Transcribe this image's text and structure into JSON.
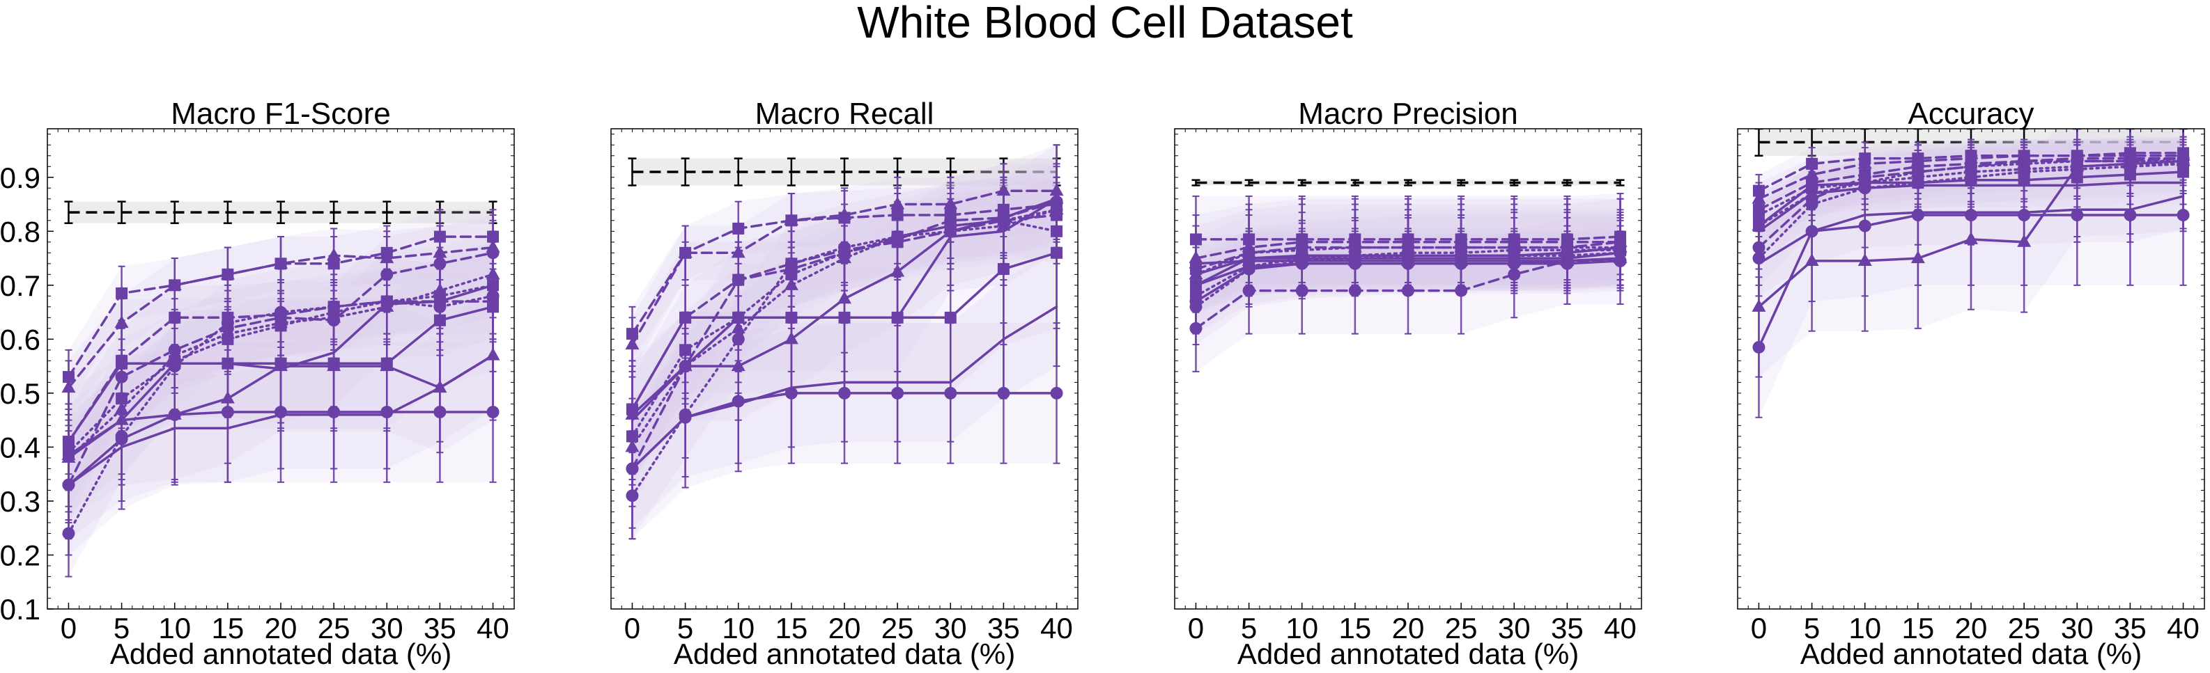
{
  "title": "White Blood Cell Dataset",
  "colors": {
    "series": "#6a3fa6",
    "band": "#d9cdec",
    "reference": "#000000",
    "reference_band": "#ececec"
  },
  "chart_data": [
    {
      "type": "line",
      "title": "Macro F1-Score",
      "xlabel": "Added annotated data (%)",
      "ylabel": "",
      "ylim": [
        0.1,
        0.99
      ],
      "yticks": [
        0.1,
        0.2,
        0.3,
        0.4,
        0.5,
        0.6,
        0.7,
        0.8,
        0.9
      ],
      "x": [
        0,
        5,
        10,
        15,
        20,
        25,
        30,
        35,
        40
      ],
      "reference": {
        "value": 0.835,
        "lo": 0.815,
        "hi": 0.855
      },
      "series": [
        {
          "marker": "square",
          "style": "dashed",
          "values": [
            0.53,
            0.685,
            0.7,
            0.72,
            0.74,
            0.74,
            0.76,
            0.79,
            0.79
          ],
          "err": 0.05
        },
        {
          "marker": "triangle",
          "style": "dashed",
          "values": [
            0.51,
            0.63,
            0.7,
            0.72,
            0.74,
            0.755,
            0.75,
            0.76,
            0.77
          ],
          "err": 0.05
        },
        {
          "marker": "square",
          "style": "dashed",
          "values": [
            0.41,
            0.56,
            0.64,
            0.64,
            0.645,
            0.66,
            0.67,
            0.67,
            0.67
          ],
          "err": 0.06
        },
        {
          "marker": "circle",
          "style": "dashed",
          "values": [
            0.33,
            0.53,
            0.58,
            0.62,
            0.64,
            0.635,
            0.72,
            0.74,
            0.76
          ],
          "err": 0.07
        },
        {
          "marker": "triangle",
          "style": "dotted",
          "values": [
            0.38,
            0.47,
            0.57,
            0.61,
            0.63,
            0.64,
            0.66,
            0.69,
            0.72
          ],
          "err": 0.06
        },
        {
          "marker": "square",
          "style": "dotted",
          "values": [
            0.39,
            0.49,
            0.56,
            0.6,
            0.625,
            0.65,
            0.67,
            0.68,
            0.7
          ],
          "err": 0.06
        },
        {
          "marker": "circle",
          "style": "dotted",
          "values": [
            0.24,
            0.42,
            0.55,
            0.63,
            0.65,
            0.66,
            0.67,
            0.66,
            0.68
          ],
          "err": 0.08
        },
        {
          "marker": "square",
          "style": "solid",
          "values": [
            0.41,
            0.555,
            0.555,
            0.555,
            0.555,
            0.555,
            0.555,
            0.635,
            0.66
          ],
          "err": 0.12
        },
        {
          "marker": "none",
          "style": "solid",
          "values": [
            0.38,
            0.45,
            0.555,
            0.555,
            0.545,
            0.575,
            0.665,
            0.67,
            0.7
          ],
          "err": 0.1
        },
        {
          "marker": "triangle",
          "style": "solid",
          "values": [
            0.385,
            0.45,
            0.46,
            0.49,
            0.55,
            0.55,
            0.55,
            0.51,
            0.57
          ],
          "err": 0.12
        },
        {
          "marker": "circle",
          "style": "solid",
          "values": [
            0.33,
            0.415,
            0.46,
            0.465,
            0.465,
            0.465,
            0.465,
            0.465,
            0.465
          ],
          "err": 0.13
        },
        {
          "marker": "none",
          "style": "solid",
          "values": [
            0.33,
            0.4,
            0.435,
            0.435,
            0.46,
            0.46,
            0.46,
            0.51,
            0.57
          ],
          "err": 0.1
        }
      ]
    },
    {
      "type": "line",
      "title": "Macro Recall",
      "xlabel": "Added annotated data (%)",
      "ylabel": "",
      "ylim": [
        0.1,
        0.99
      ],
      "yticks": [],
      "x": [
        0,
        5,
        10,
        15,
        20,
        25,
        30,
        35,
        40
      ],
      "reference": {
        "value": 0.91,
        "lo": 0.885,
        "hi": 0.935
      },
      "series": [
        {
          "marker": "square",
          "style": "dashed",
          "values": [
            0.61,
            0.76,
            0.805,
            0.82,
            0.825,
            0.83,
            0.83,
            0.84,
            0.85
          ],
          "err": 0.05
        },
        {
          "marker": "triangle",
          "style": "dashed",
          "values": [
            0.59,
            0.76,
            0.76,
            0.82,
            0.83,
            0.85,
            0.85,
            0.875,
            0.875
          ],
          "err": 0.05
        },
        {
          "marker": "square",
          "style": "dashed",
          "values": [
            0.47,
            0.64,
            0.71,
            0.74,
            0.765,
            0.78,
            0.8,
            0.82,
            0.83
          ],
          "err": 0.06
        },
        {
          "marker": "circle",
          "style": "dashed",
          "values": [
            0.36,
            0.55,
            0.71,
            0.73,
            0.76,
            0.785,
            0.82,
            0.825,
            0.855
          ],
          "err": 0.07
        },
        {
          "marker": "triangle",
          "style": "dotted",
          "values": [
            0.4,
            0.55,
            0.62,
            0.7,
            0.75,
            0.79,
            0.8,
            0.81,
            0.84
          ],
          "err": 0.06
        },
        {
          "marker": "square",
          "style": "dotted",
          "values": [
            0.42,
            0.58,
            0.64,
            0.72,
            0.76,
            0.79,
            0.81,
            0.82,
            0.8
          ],
          "err": 0.06
        },
        {
          "marker": "circle",
          "style": "dotted",
          "values": [
            0.31,
            0.46,
            0.6,
            0.74,
            0.77,
            0.79,
            0.81,
            0.82,
            0.84
          ],
          "err": 0.08
        },
        {
          "marker": "square",
          "style": "solid",
          "values": [
            0.47,
            0.64,
            0.64,
            0.64,
            0.64,
            0.64,
            0.64,
            0.73,
            0.76
          ],
          "err": 0.14
        },
        {
          "marker": "none",
          "style": "solid",
          "values": [
            0.45,
            0.55,
            0.64,
            0.64,
            0.64,
            0.64,
            0.79,
            0.8,
            0.86
          ],
          "err": 0.1
        },
        {
          "marker": "triangle",
          "style": "solid",
          "values": [
            0.46,
            0.55,
            0.55,
            0.6,
            0.675,
            0.725,
            0.8,
            0.825,
            0.86
          ],
          "err": 0.1
        },
        {
          "marker": "circle",
          "style": "solid",
          "values": [
            0.36,
            0.455,
            0.485,
            0.5,
            0.5,
            0.5,
            0.5,
            0.5,
            0.5
          ],
          "err": 0.13
        },
        {
          "marker": "none",
          "style": "solid",
          "values": [
            0.36,
            0.455,
            0.48,
            0.51,
            0.52,
            0.52,
            0.52,
            0.6,
            0.66
          ],
          "err": 0.11
        }
      ]
    },
    {
      "type": "line",
      "title": "Macro Precision",
      "xlabel": "Added annotated data (%)",
      "ylabel": "",
      "ylim": [
        0.1,
        0.99
      ],
      "yticks": [],
      "x": [
        0,
        5,
        10,
        15,
        20,
        25,
        30,
        35,
        40
      ],
      "reference": {
        "value": 0.89,
        "lo": 0.885,
        "hi": 0.895
      },
      "series": [
        {
          "marker": "square",
          "style": "dashed",
          "values": [
            0.785,
            0.785,
            0.785,
            0.785,
            0.785,
            0.785,
            0.785,
            0.785,
            0.79
          ],
          "err": 0.08
        },
        {
          "marker": "triangle",
          "style": "dashed",
          "values": [
            0.75,
            0.77,
            0.78,
            0.78,
            0.78,
            0.78,
            0.78,
            0.78,
            0.78
          ],
          "err": 0.08
        },
        {
          "marker": "square",
          "style": "dashed",
          "values": [
            0.73,
            0.76,
            0.77,
            0.77,
            0.77,
            0.77,
            0.77,
            0.77,
            0.78
          ],
          "err": 0.08
        },
        {
          "marker": "circle",
          "style": "dashed",
          "values": [
            0.62,
            0.69,
            0.69,
            0.69,
            0.69,
            0.69,
            0.72,
            0.745,
            0.745
          ],
          "err": 0.08
        },
        {
          "marker": "triangle",
          "style": "dotted",
          "values": [
            0.72,
            0.76,
            0.765,
            0.77,
            0.77,
            0.77,
            0.77,
            0.77,
            0.77
          ],
          "err": 0.07
        },
        {
          "marker": "square",
          "style": "dotted",
          "values": [
            0.68,
            0.735,
            0.75,
            0.755,
            0.76,
            0.76,
            0.765,
            0.765,
            0.765
          ],
          "err": 0.07
        },
        {
          "marker": "circle",
          "style": "dotted",
          "values": [
            0.66,
            0.73,
            0.745,
            0.75,
            0.755,
            0.755,
            0.755,
            0.755,
            0.76
          ],
          "err": 0.07
        },
        {
          "marker": "square",
          "style": "solid",
          "values": [
            0.7,
            0.75,
            0.755,
            0.755,
            0.755,
            0.755,
            0.755,
            0.76,
            0.77
          ],
          "err": 0.05
        },
        {
          "marker": "none",
          "style": "solid",
          "values": [
            0.72,
            0.75,
            0.75,
            0.75,
            0.75,
            0.75,
            0.75,
            0.75,
            0.76
          ],
          "err": 0.05
        },
        {
          "marker": "triangle",
          "style": "solid",
          "values": [
            0.74,
            0.745,
            0.745,
            0.745,
            0.745,
            0.745,
            0.745,
            0.745,
            0.75
          ],
          "err": 0.05
        },
        {
          "marker": "circle",
          "style": "solid",
          "values": [
            0.67,
            0.73,
            0.74,
            0.74,
            0.74,
            0.74,
            0.74,
            0.74,
            0.745
          ],
          "err": 0.05
        },
        {
          "marker": "none",
          "style": "solid",
          "values": [
            0.7,
            0.735,
            0.74,
            0.74,
            0.74,
            0.74,
            0.74,
            0.745,
            0.75
          ],
          "err": 0.05
        }
      ]
    },
    {
      "type": "line",
      "title": "Accuracy",
      "xlabel": "Added annotated data (%)",
      "ylabel": "",
      "ylim": [
        0.1,
        0.99
      ],
      "yticks": [],
      "x": [
        0,
        5,
        10,
        15,
        20,
        25,
        30,
        35,
        40
      ],
      "reference": {
        "value": 0.965,
        "lo": 0.94,
        "hi": 0.99
      },
      "series": [
        {
          "marker": "square",
          "style": "dashed",
          "values": [
            0.875,
            0.925,
            0.935,
            0.935,
            0.94,
            0.94,
            0.94,
            0.945,
            0.945
          ],
          "err": 0.03
        },
        {
          "marker": "triangle",
          "style": "dashed",
          "values": [
            0.86,
            0.905,
            0.925,
            0.93,
            0.935,
            0.94,
            0.94,
            0.94,
            0.94
          ],
          "err": 0.03
        },
        {
          "marker": "square",
          "style": "dashed",
          "values": [
            0.84,
            0.89,
            0.905,
            0.92,
            0.925,
            0.93,
            0.935,
            0.935,
            0.935
          ],
          "err": 0.03
        },
        {
          "marker": "circle",
          "style": "dashed",
          "values": [
            0.77,
            0.86,
            0.9,
            0.91,
            0.92,
            0.93,
            0.93,
            0.93,
            0.935
          ],
          "err": 0.04
        },
        {
          "marker": "triangle",
          "style": "dotted",
          "values": [
            0.81,
            0.87,
            0.89,
            0.91,
            0.92,
            0.925,
            0.93,
            0.93,
            0.93
          ],
          "err": 0.04
        },
        {
          "marker": "square",
          "style": "dotted",
          "values": [
            0.83,
            0.88,
            0.89,
            0.9,
            0.91,
            0.915,
            0.92,
            0.925,
            0.925
          ],
          "err": 0.04
        },
        {
          "marker": "circle",
          "style": "dotted",
          "values": [
            0.75,
            0.85,
            0.88,
            0.89,
            0.9,
            0.91,
            0.915,
            0.92,
            0.925
          ],
          "err": 0.05
        },
        {
          "marker": "square",
          "style": "solid",
          "values": [
            0.81,
            0.885,
            0.89,
            0.89,
            0.895,
            0.895,
            0.9,
            0.905,
            0.91
          ],
          "err": 0.04
        },
        {
          "marker": "none",
          "style": "solid",
          "values": [
            0.8,
            0.87,
            0.88,
            0.885,
            0.885,
            0.885,
            0.885,
            0.89,
            0.89
          ],
          "err": 0.04
        },
        {
          "marker": "triangle",
          "style": "solid",
          "values": [
            0.66,
            0.745,
            0.745,
            0.75,
            0.785,
            0.78,
            0.92,
            0.925,
            0.93
          ],
          "err": 0.13
        },
        {
          "marker": "circle",
          "style": "solid",
          "values": [
            0.585,
            0.8,
            0.81,
            0.83,
            0.83,
            0.83,
            0.83,
            0.83,
            0.83
          ],
          "err": 0.13
        },
        {
          "marker": "none",
          "style": "solid",
          "values": [
            0.74,
            0.8,
            0.83,
            0.835,
            0.835,
            0.835,
            0.84,
            0.84,
            0.865
          ],
          "err": 0.06
        }
      ]
    }
  ]
}
